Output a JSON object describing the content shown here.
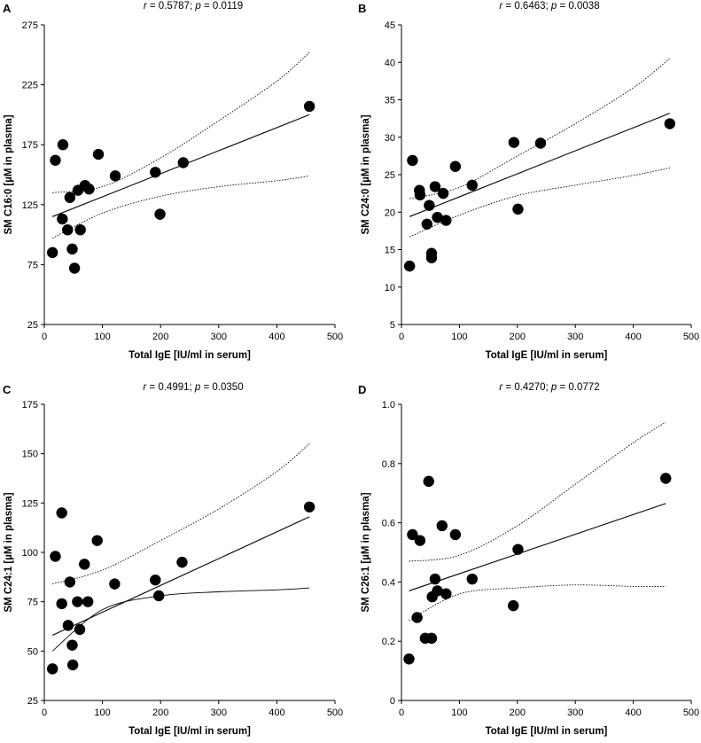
{
  "figure": {
    "colors": {
      "points": "#000000",
      "fit_line": "#000000",
      "ci_line": "#000000",
      "background": "#ffffff"
    }
  },
  "chart_data": [
    {
      "panel": "A",
      "type": "scatter",
      "stat_r": "0.5787",
      "stat_p": "0.0119",
      "xlabel": "Total IgE [IU/ml in serum]",
      "ylabel": "SM C16:0 [µM in plasma]",
      "xlim": [
        0,
        500
      ],
      "ylim": [
        25,
        275
      ],
      "xticks": [
        0,
        100,
        200,
        300,
        400,
        500
      ],
      "yticks": [
        25,
        75,
        125,
        175,
        225,
        275
      ],
      "points": [
        [
          14,
          85
        ],
        [
          19,
          162
        ],
        [
          31,
          113
        ],
        [
          32,
          175
        ],
        [
          40,
          104
        ],
        [
          44,
          131
        ],
        [
          48,
          88
        ],
        [
          52,
          72
        ],
        [
          58,
          137
        ],
        [
          62,
          104
        ],
        [
          70,
          141
        ],
        [
          77,
          138
        ],
        [
          93,
          167
        ],
        [
          122,
          149
        ],
        [
          191,
          152
        ],
        [
          199,
          117
        ],
        [
          239,
          160
        ],
        [
          456,
          207
        ]
      ],
      "fit_line": [
        [
          14,
          115
        ],
        [
          456,
          200
        ]
      ],
      "ci_upper": [
        [
          14,
          135
        ],
        [
          100,
          140
        ],
        [
          200,
          164
        ],
        [
          300,
          195
        ],
        [
          400,
          228
        ],
        [
          456,
          252
        ]
      ],
      "ci_lower": [
        [
          14,
          97
        ],
        [
          100,
          118
        ],
        [
          200,
          132
        ],
        [
          300,
          140
        ],
        [
          400,
          145
        ],
        [
          456,
          149
        ]
      ]
    },
    {
      "panel": "B",
      "type": "scatter",
      "stat_r": "0.6463",
      "stat_p": "0.0038",
      "xlabel": "Total IgE [IU/ml in serum]",
      "ylabel": "SM C24:0 [µM in plasma]",
      "xlim": [
        0,
        500
      ],
      "ylim": [
        5,
        45
      ],
      "xticks": [
        0,
        100,
        200,
        300,
        400,
        500
      ],
      "yticks": [
        5,
        10,
        15,
        20,
        25,
        30,
        35,
        40,
        45
      ],
      "points": [
        [
          14,
          12.8
        ],
        [
          19,
          26.9
        ],
        [
          31,
          22.9
        ],
        [
          32,
          22.3
        ],
        [
          44,
          18.4
        ],
        [
          48,
          20.9
        ],
        [
          52,
          14.5
        ],
        [
          52,
          13.9
        ],
        [
          58,
          23.4
        ],
        [
          62,
          19.3
        ],
        [
          72,
          22.5
        ],
        [
          77,
          18.9
        ],
        [
          93,
          26.1
        ],
        [
          122,
          23.6
        ],
        [
          194,
          29.3
        ],
        [
          201,
          20.4
        ],
        [
          240,
          29.2
        ],
        [
          463,
          31.8
        ]
      ],
      "fit_line": [
        [
          14,
          19.4
        ],
        [
          463,
          33.2
        ]
      ],
      "ci_upper": [
        [
          14,
          21.8
        ],
        [
          100,
          23.3
        ],
        [
          200,
          27.5
        ],
        [
          300,
          31.8
        ],
        [
          400,
          36.6
        ],
        [
          463,
          40.5
        ]
      ],
      "ci_lower": [
        [
          14,
          16.7
        ],
        [
          100,
          19.6
        ],
        [
          200,
          22.2
        ],
        [
          300,
          23.6
        ],
        [
          400,
          24.9
        ],
        [
          463,
          25.9
        ]
      ]
    },
    {
      "panel": "C",
      "type": "scatter",
      "stat_r": "0.4991",
      "stat_p": "0.0350",
      "xlabel": "Total IgE [IU/ml in serum]",
      "ylabel": "SM C24:1 [µM in plasma]",
      "xlim": [
        0,
        500
      ],
      "ylim": [
        25,
        175
      ],
      "xticks": [
        0,
        100,
        200,
        300,
        400,
        500
      ],
      "yticks": [
        25,
        50,
        75,
        100,
        125,
        150,
        175
      ],
      "points": [
        [
          14,
          41
        ],
        [
          19,
          98
        ],
        [
          30,
          74
        ],
        [
          30,
          120
        ],
        [
          41,
          63
        ],
        [
          44,
          85
        ],
        [
          48,
          53
        ],
        [
          49,
          43
        ],
        [
          57,
          75
        ],
        [
          61,
          61
        ],
        [
          69,
          94
        ],
        [
          75,
          75
        ],
        [
          91,
          106
        ],
        [
          121,
          84
        ],
        [
          191,
          86
        ],
        [
          197,
          78
        ],
        [
          237,
          95
        ],
        [
          456,
          123
        ]
      ],
      "fit_line": [
        [
          14,
          58
        ],
        [
          456,
          118
        ]
      ],
      "ci_upper": [
        [
          14,
          84
        ],
        [
          100,
          91
        ],
        [
          200,
          106
        ],
        [
          300,
          122
        ],
        [
          400,
          141
        ],
        [
          456,
          155
        ]
      ],
      "ci_lower": [
        [
          14,
          50
        ],
        [
          100,
          71
        ],
        [
          200,
          78
        ],
        [
          300,
          80
        ],
        [
          400,
          81
        ],
        [
          456,
          82
        ]
      ]
    },
    {
      "panel": "D",
      "type": "scatter",
      "stat_r": "0.4270",
      "stat_p": "0.0772",
      "xlabel": "Total IgE [IU/ml in serum]",
      "ylabel": "SM C26:1 [µM in plasma]",
      "xlim": [
        0,
        500
      ],
      "ylim": [
        0,
        1.0
      ],
      "xticks": [
        0,
        100,
        200,
        300,
        400,
        500
      ],
      "yticks": [
        0,
        0.2,
        0.4,
        0.6,
        0.8,
        1.0
      ],
      "ytick_labels": [
        "0",
        "0.2",
        "0.4",
        "0.6",
        "0.8",
        "1.0"
      ],
      "points": [
        [
          13,
          0.14
        ],
        [
          19,
          0.56
        ],
        [
          27,
          0.28
        ],
        [
          32,
          0.54
        ],
        [
          41,
          0.21
        ],
        [
          47,
          0.74
        ],
        [
          52,
          0.21
        ],
        [
          53,
          0.35
        ],
        [
          58,
          0.41
        ],
        [
          62,
          0.37
        ],
        [
          70,
          0.59
        ],
        [
          77,
          0.36
        ],
        [
          93,
          0.56
        ],
        [
          122,
          0.41
        ],
        [
          193,
          0.32
        ],
        [
          201,
          0.51
        ],
        [
          456,
          0.75
        ]
      ],
      "fit_line": [
        [
          13,
          0.37
        ],
        [
          456,
          0.665
        ]
      ],
      "ci_upper": [
        [
          13,
          0.47
        ],
        [
          100,
          0.49
        ],
        [
          200,
          0.59
        ],
        [
          300,
          0.73
        ],
        [
          400,
          0.87
        ],
        [
          456,
          0.94
        ]
      ],
      "ci_lower": [
        [
          13,
          0.27
        ],
        [
          100,
          0.36
        ],
        [
          200,
          0.38
        ],
        [
          300,
          0.39
        ],
        [
          400,
          0.385
        ],
        [
          456,
          0.385
        ]
      ]
    }
  ]
}
